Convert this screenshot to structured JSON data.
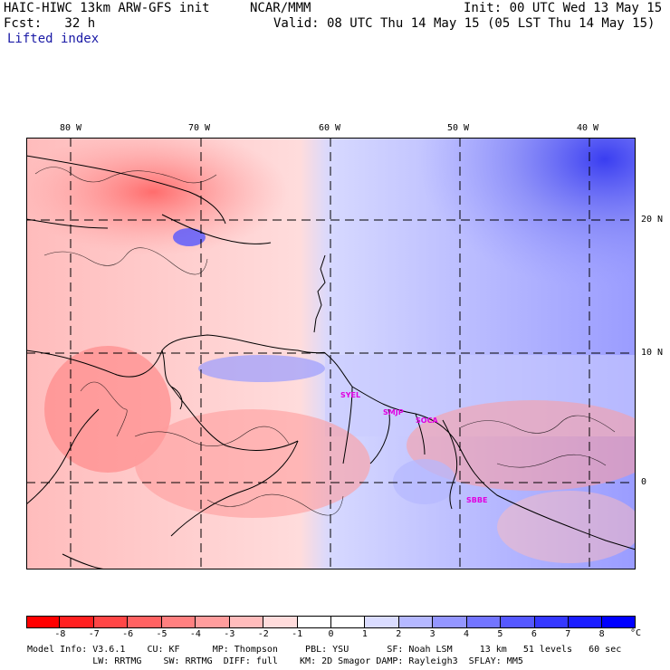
{
  "header": {
    "title_left": "HAIC-HIWC 13km ARW-GFS init",
    "title_center": "NCAR/MMM",
    "init": "Init: 00 UTC Wed 13 May 15",
    "fcst": "Fcst:   32 h",
    "valid": "Valid: 08 UTC Thu 14 May 15 (05 LST Thu 14 May 15)",
    "field": "Lifted index"
  },
  "map": {
    "lon_labels": [
      "80 W",
      "70 W",
      "60 W",
      "50 W",
      "40 W"
    ],
    "lat_labels": [
      "20 N",
      "10 N",
      "0"
    ],
    "stations": [
      "SYEL",
      "SMJP",
      "SOCA",
      "SBBE"
    ]
  },
  "colorbar": {
    "ticks": [
      "-8",
      "-7",
      "-6",
      "-5",
      "-4",
      "-3",
      "-2",
      "-1",
      "0",
      "1",
      "2",
      "3",
      "4",
      "5",
      "6",
      "7",
      "8"
    ],
    "unit": "°C",
    "colors": [
      "#ff0000",
      "#ff2020",
      "#ff4646",
      "#ff6262",
      "#ff8080",
      "#ff9d9d",
      "#ffbcbc",
      "#ffdcdc",
      "#ffffff",
      "#ffffff",
      "#dadcff",
      "#b5b8ff",
      "#9496ff",
      "#7375ff",
      "#5558ff",
      "#3538ff",
      "#1a1dff",
      "#0000ff"
    ]
  },
  "footer": {
    "line1": "Model Info: V3.6.1    CU: KF      MP: Thompson     PBL: YSU       SF: Noah LSM     13 km   51 levels   60 sec",
    "line2": "            LW: RRTMG    SW: RRTMG  DIFF: full    KM: 2D Smagor DAMP: Rayleigh3  SFLAY: MM5"
  }
}
